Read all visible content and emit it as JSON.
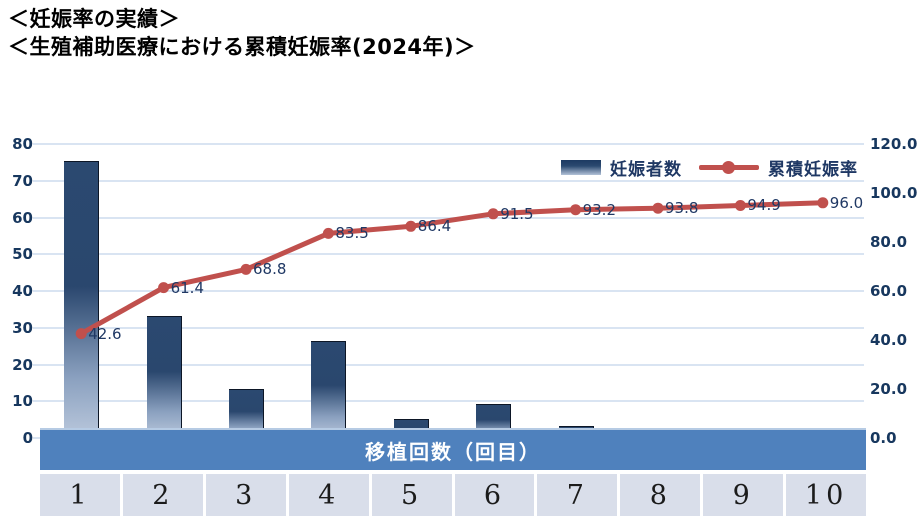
{
  "page": {
    "title_line1": "＜妊娠率の実績＞",
    "title_line2": "＜生殖補助医療における累積妊娠率(2024年)＞"
  },
  "chart_data": {
    "type": "pareto-combo",
    "categories": [
      "1",
      "2",
      "3",
      "4",
      "5",
      "6",
      "7",
      "8",
      "9",
      "10"
    ],
    "x_axis_title": "移植回数（回目）",
    "series": [
      {
        "name": "妊娠者数",
        "type": "bar",
        "axis": "left",
        "values": [
          75,
          33,
          13,
          26,
          5,
          9,
          3,
          1,
          2,
          2
        ]
      },
      {
        "name": "累積妊娠率",
        "type": "line",
        "axis": "right",
        "values": [
          42.6,
          61.4,
          68.8,
          83.5,
          86.4,
          91.5,
          93.2,
          93.8,
          94.9,
          96.0
        ],
        "labels": [
          "42.6",
          "61.4",
          "68.8",
          "83.5",
          "86.4",
          "91.5",
          "93.2",
          "93.8",
          "94.9",
          "96.0"
        ]
      }
    ],
    "left_axis": {
      "min": 0,
      "max": 80,
      "step": 10,
      "ticks": [
        "0",
        "10",
        "20",
        "30",
        "40",
        "50",
        "60",
        "70",
        "80"
      ]
    },
    "right_axis": {
      "min": 0,
      "max": 120,
      "step": 20,
      "ticks": [
        "0.0",
        "20.0",
        "40.0",
        "60.0",
        "80.0",
        "100.0",
        "120.0"
      ]
    },
    "legend": [
      "妊娠者数",
      "累積妊娠率"
    ],
    "grid": true,
    "legend_position": "top-right-inside",
    "colors": {
      "bar_top": "#2b4970",
      "bar_bottom": "#bac8dc",
      "line": "#c0504d",
      "value_label": "#1f3864",
      "axis_label": "#17375e",
      "gridline": "#d9e4f2",
      "band_background": "#4f81bd",
      "band_text": "#ffffff",
      "category_cell_background": "#d9deea"
    }
  }
}
